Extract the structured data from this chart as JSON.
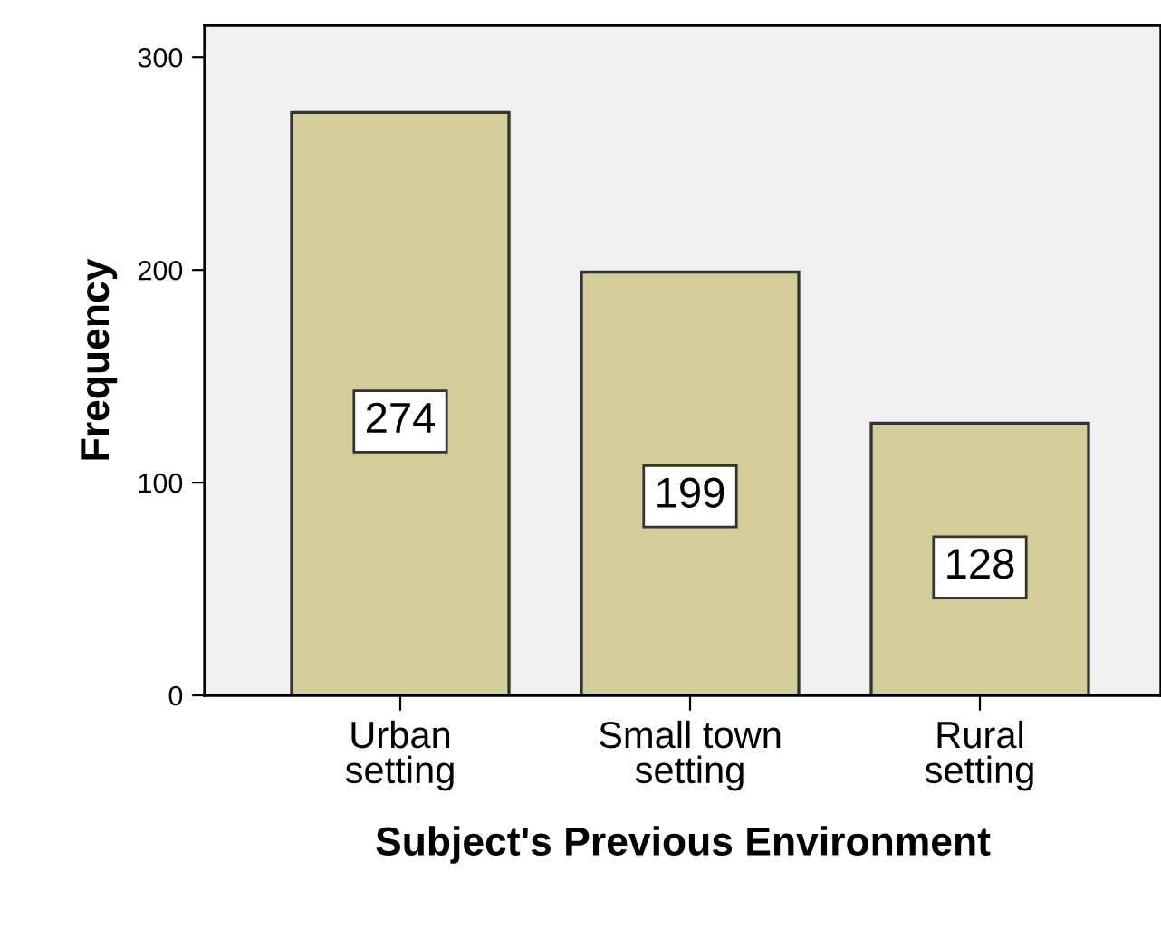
{
  "chart_data": {
    "type": "bar",
    "xlabel": "Subject's Previous Environment",
    "ylabel": "Frequency",
    "categories": [
      "Urban\nsetting",
      "Small town\nsetting",
      "Rural\nsetting"
    ],
    "values": [
      274,
      199,
      128
    ],
    "color": "#d3ce97",
    "ylim": [
      0,
      315
    ],
    "yticks": [
      0,
      100,
      200,
      300
    ],
    "grid": false,
    "data_labels": true
  }
}
